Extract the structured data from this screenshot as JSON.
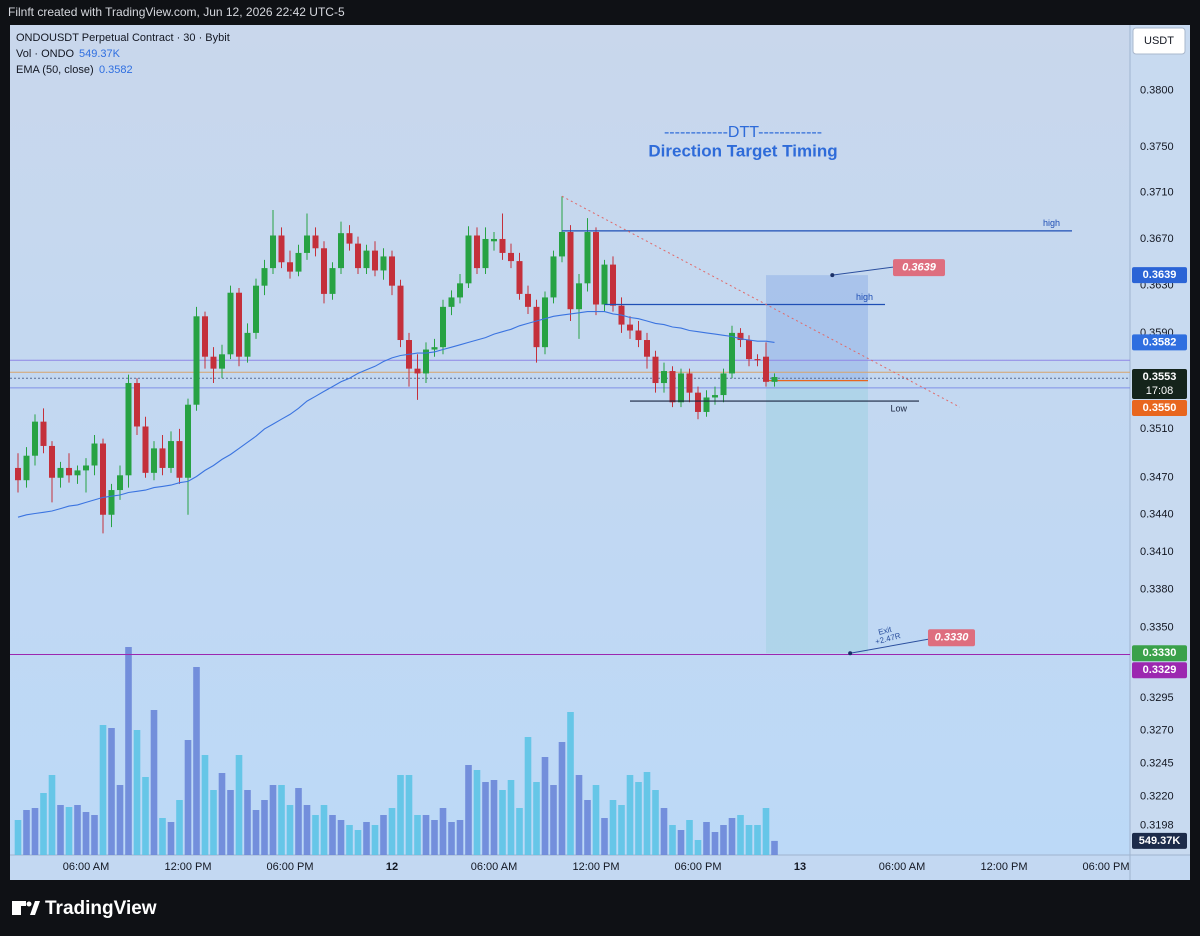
{
  "header": "Filnft created with TradingView.com, Jun 12, 2026 22:42 UTC-5",
  "brand": "TradingView",
  "chart_data": {
    "type": "candlestick",
    "title": "ONDOUSDT Perpetual Contract · 30 · Bybit",
    "currency": "USDT",
    "annotations": [
      "------------DTT------------",
      "Direction Target Timing"
    ],
    "annotation_color": "#2e6bd9",
    "up_color": "#27a243",
    "down_color": "#c4303b",
    "log": true,
    "grid": false,
    "ylim": [
      0.3176,
      0.3859
    ],
    "yticks": [
      {
        "value": 0.38,
        "label": "0.3800"
      },
      {
        "value": 0.375,
        "label": "0.3750"
      },
      {
        "value": 0.371,
        "label": "0.3710"
      },
      {
        "value": 0.367,
        "label": "0.3670"
      },
      {
        "value": 0.363,
        "label": "0.3630"
      },
      {
        "value": 0.359,
        "label": "0.3590"
      },
      {
        "value": 0.351,
        "label": "0.3510"
      },
      {
        "value": 0.347,
        "label": "0.3470"
      },
      {
        "value": 0.344,
        "label": "0.3440"
      },
      {
        "value": 0.341,
        "label": "0.3410"
      },
      {
        "value": 0.338,
        "label": "0.3380"
      },
      {
        "value": 0.335,
        "label": "0.3350"
      },
      0.3295,
      {
        "value": 0.327,
        "label": "0.3270"
      },
      0.3245,
      {
        "value": 0.322,
        "label": "0.3220"
      },
      0.3198
    ],
    "y2lim": [
      0,
      32370
    ],
    "categories": [
      null,
      null,
      null,
      null,
      null,
      null,
      null,
      null,
      "06:00 AM",
      null,
      null,
      null,
      null,
      null,
      null,
      null,
      null,
      null,
      null,
      null,
      "12:00 PM",
      null,
      null,
      null,
      null,
      null,
      null,
      null,
      null,
      null,
      null,
      null,
      "06:00 PM",
      null,
      null,
      null,
      null,
      null,
      null,
      null,
      null,
      null,
      null,
      null,
      "12",
      null,
      null,
      null,
      null,
      null,
      null,
      null,
      null,
      null,
      null,
      null,
      "06:00 AM",
      null,
      null,
      null,
      null,
      null,
      null,
      null,
      null,
      null,
      null,
      null,
      "12:00 PM",
      null,
      null,
      null,
      null,
      null,
      null,
      null,
      null,
      null,
      null,
      null,
      "06:00 PM",
      null,
      null,
      null,
      null,
      null,
      null,
      null,
      null,
      null,
      null,
      null,
      "13",
      null,
      null,
      null,
      null,
      null,
      null,
      null,
      null,
      null,
      null,
      null,
      "06:00 AM",
      null,
      null,
      null,
      null,
      null,
      null,
      null,
      null,
      null,
      null,
      null,
      "12:00 PM",
      null,
      null,
      null,
      null,
      null,
      null,
      null,
      null,
      null,
      null,
      null,
      "06:00 PM",
      null,
      null
    ],
    "open": [
      0.3478,
      0.3468,
      0.3488,
      0.3516,
      0.3496,
      0.347,
      0.3478,
      0.3472,
      0.3476,
      0.348,
      0.3498,
      0.344,
      0.346,
      0.3472,
      0.3548,
      0.3512,
      0.3474,
      0.3494,
      0.3478,
      0.35,
      0.347,
      0.353,
      0.3604,
      0.357,
      0.356,
      0.3572,
      0.3624,
      0.357,
      0.359,
      0.363,
      0.3645,
      0.3673,
      0.365,
      0.3642,
      0.3658,
      0.3673,
      0.3662,
      0.3623,
      0.3645,
      0.3675,
      0.3666,
      0.3645,
      0.366,
      0.3643,
      0.3655,
      0.363,
      0.3584,
      0.356,
      0.3556,
      0.3576,
      0.3578,
      0.3612,
      0.362,
      0.3632,
      0.3673,
      0.3645,
      0.3668,
      0.367,
      0.3658,
      0.3651,
      0.3623,
      0.3612,
      0.3578,
      0.362,
      0.3655,
      0.3676,
      0.361,
      0.3632,
      0.3676,
      0.3614,
      0.3648,
      0.3613,
      0.3597,
      0.3592,
      0.3584,
      0.357,
      0.3548,
      0.3558,
      0.3532,
      0.3556,
      0.354,
      0.3524,
      0.3536,
      0.3538,
      0.3556,
      0.359,
      0.3584,
      0.3568,
      0.357,
      0.3549,
      null,
      null,
      null,
      null,
      null,
      null,
      null,
      null,
      null,
      null,
      null,
      null,
      null,
      null,
      null,
      null,
      null,
      null,
      null,
      null,
      null,
      null,
      null,
      null,
      null,
      null,
      null,
      null,
      null,
      null,
      null,
      null,
      null,
      null,
      null,
      null,
      null,
      null,
      null,
      null,
      null
    ],
    "high": [
      0.349,
      0.3495,
      0.3522,
      0.3527,
      0.35,
      0.3483,
      0.349,
      0.348,
      0.3486,
      0.3505,
      0.3502,
      0.3465,
      0.348,
      0.3555,
      0.3552,
      0.352,
      0.35,
      0.3505,
      0.3508,
      0.351,
      0.3535,
      0.3612,
      0.3608,
      0.3578,
      0.358,
      0.363,
      0.3628,
      0.3598,
      0.3636,
      0.3652,
      0.3695,
      0.368,
      0.366,
      0.3665,
      0.3692,
      0.368,
      0.3668,
      0.365,
      0.3685,
      0.3682,
      0.3672,
      0.3665,
      0.3668,
      0.3662,
      0.366,
      0.3635,
      0.359,
      0.3572,
      0.3582,
      0.3585,
      0.3618,
      0.3626,
      0.364,
      0.3681,
      0.368,
      0.368,
      0.3676,
      0.3692,
      0.3666,
      0.3658,
      0.363,
      0.3618,
      0.3625,
      0.366,
      0.3707,
      0.3682,
      0.364,
      0.3688,
      0.368,
      0.3652,
      0.3655,
      0.362,
      0.3604,
      0.36,
      0.359,
      0.3575,
      0.3565,
      0.3562,
      0.356,
      0.356,
      0.3545,
      0.3542,
      0.3545,
      0.356,
      0.3596,
      0.3594,
      0.3588,
      0.3572,
      0.3582,
      0.3556,
      null,
      null,
      null,
      null,
      null,
      null,
      null,
      null,
      null,
      null,
      null,
      null,
      null,
      null,
      null,
      null,
      null,
      null,
      null,
      null,
      null,
      null,
      null,
      null,
      null,
      null,
      null,
      null,
      null,
      null,
      null,
      null,
      null,
      null,
      null,
      null,
      null,
      null,
      null,
      null,
      null
    ],
    "low": [
      0.3458,
      0.3462,
      0.348,
      0.349,
      0.345,
      0.3462,
      0.3466,
      0.3465,
      0.3458,
      0.3472,
      0.3425,
      0.343,
      0.3452,
      0.3462,
      0.3505,
      0.347,
      0.3468,
      0.3472,
      0.3474,
      0.3465,
      0.344,
      0.3525,
      0.356,
      0.3548,
      0.3552,
      0.3568,
      0.3562,
      0.3565,
      0.3585,
      0.3622,
      0.364,
      0.3645,
      0.3636,
      0.3638,
      0.3652,
      0.3655,
      0.3615,
      0.3618,
      0.364,
      0.366,
      0.364,
      0.364,
      0.3638,
      0.3635,
      0.3622,
      0.3578,
      0.3545,
      0.3534,
      0.3548,
      0.357,
      0.3572,
      0.3605,
      0.3615,
      0.3628,
      0.364,
      0.364,
      0.366,
      0.3652,
      0.3645,
      0.3618,
      0.3606,
      0.3565,
      0.3572,
      0.3615,
      0.365,
      0.36,
      0.3585,
      0.3625,
      0.3605,
      0.3608,
      0.3608,
      0.359,
      0.3585,
      0.3578,
      0.356,
      0.354,
      0.354,
      0.3528,
      0.3528,
      0.3532,
      0.3518,
      0.352,
      0.353,
      0.3532,
      0.3552,
      0.3578,
      0.3562,
      0.3562,
      0.3545,
      0.3545,
      null,
      null,
      null,
      null,
      null,
      null,
      null,
      null,
      null,
      null,
      null,
      null,
      null,
      null,
      null,
      null,
      null,
      null,
      null,
      null,
      null,
      null,
      null,
      null,
      null,
      null,
      null,
      null,
      null,
      null,
      null,
      null,
      null,
      null,
      null,
      null,
      null,
      null,
      null,
      null,
      null
    ],
    "close": [
      0.3468,
      0.3488,
      0.3516,
      0.3496,
      0.347,
      0.3478,
      0.3472,
      0.3476,
      0.348,
      0.3498,
      0.344,
      0.346,
      0.3472,
      0.3548,
      0.3512,
      0.3474,
      0.3494,
      0.3478,
      0.35,
      0.347,
      0.353,
      0.3604,
      0.357,
      0.356,
      0.3572,
      0.3624,
      0.357,
      0.359,
      0.363,
      0.3645,
      0.3673,
      0.365,
      0.3642,
      0.3658,
      0.3673,
      0.3662,
      0.3623,
      0.3645,
      0.3675,
      0.3666,
      0.3645,
      0.366,
      0.3643,
      0.3655,
      0.363,
      0.3584,
      0.356,
      0.3556,
      0.3576,
      0.3578,
      0.3612,
      0.362,
      0.3632,
      0.3673,
      0.3645,
      0.367,
      0.367,
      0.3658,
      0.3651,
      0.3623,
      0.3612,
      0.3578,
      0.362,
      0.3655,
      0.3676,
      0.361,
      0.3632,
      0.3676,
      0.3614,
      0.3648,
      0.3613,
      0.3597,
      0.3592,
      0.3584,
      0.357,
      0.3548,
      0.3558,
      0.3532,
      0.3556,
      0.354,
      0.3524,
      0.3536,
      0.3538,
      0.3556,
      0.359,
      0.3584,
      0.3568,
      0.3567,
      0.3549,
      0.3553,
      null,
      null,
      null,
      null,
      null,
      null,
      null,
      null,
      null,
      null,
      null,
      null,
      null,
      null,
      null,
      null,
      null,
      null,
      null,
      null,
      null,
      null,
      null,
      null,
      null,
      null,
      null,
      null,
      null,
      null,
      null,
      null,
      null,
      null,
      null,
      null,
      null,
      null,
      null,
      null,
      null
    ],
    "series": [
      {
        "name": "EMA (50, close)",
        "color": "#3b74e0",
        "legend_value": 0.3582,
        "values": [
          0.3438,
          0.344,
          0.3441,
          0.3442,
          0.3443,
          0.3445,
          0.3447,
          0.3448,
          0.345,
          0.3452,
          0.3454,
          0.3455,
          0.3456,
          0.3458,
          0.3459,
          0.346,
          0.3462,
          0.3463,
          0.3464,
          0.3466,
          0.3467,
          0.3471,
          0.3476,
          0.348,
          0.3485,
          0.3489,
          0.3494,
          0.3499,
          0.3504,
          0.351,
          0.3514,
          0.3518,
          0.3522,
          0.3527,
          0.3533,
          0.3537,
          0.3541,
          0.3545,
          0.3549,
          0.3552,
          0.3556,
          0.3559,
          0.3562,
          0.3566,
          0.3569,
          0.3571,
          0.3572,
          0.3573,
          0.3573,
          0.3574,
          0.3576,
          0.3578,
          0.358,
          0.3582,
          0.3584,
          0.3586,
          0.3589,
          0.3591,
          0.3593,
          0.3596,
          0.3598,
          0.36,
          0.3602,
          0.3604,
          0.3605,
          0.3606,
          0.3607,
          0.3608,
          0.3608,
          0.3608,
          0.3606,
          0.3605,
          0.3603,
          0.3602,
          0.36,
          0.3598,
          0.3597,
          0.3595,
          0.3594,
          0.3592,
          0.3591,
          0.359,
          0.3589,
          0.3588,
          0.3587,
          0.3585,
          0.3584,
          0.3583,
          0.3583,
          0.3582,
          null,
          null,
          null,
          null,
          null,
          null,
          null,
          null,
          null,
          null,
          null,
          null,
          null,
          null,
          null,
          null,
          null,
          null,
          null,
          null,
          null,
          null,
          null,
          null,
          null,
          null,
          null,
          null,
          null,
          null,
          null,
          null,
          null,
          null,
          null,
          null,
          null,
          null,
          null,
          null,
          null
        ]
      },
      {
        "name": "Vol · ONDO",
        "axis": "y2",
        "color": "#6a86d8",
        "down_color": "#5cc3e6",
        "legend_value": {
          "value": 549.37,
          "label": "549.37K"
        },
        "values": [
          1365,
          1755,
          1833,
          2418,
          3120,
          1950,
          1872,
          1950,
          1677,
          1560,
          5070,
          4953,
          2730,
          8112,
          4875,
          3042,
          5655,
          1443,
          1287,
          2145,
          4485,
          7332,
          3900,
          2535,
          3198,
          2535,
          3900,
          2535,
          1755,
          2145,
          2730,
          2730,
          1950,
          2613,
          1950,
          1560,
          1950,
          1560,
          1365,
          1170,
          975,
          1287,
          1170,
          1560,
          1833,
          3120,
          3120,
          1560,
          1560,
          1365,
          1833,
          1287,
          1365,
          3510,
          3315,
          2847,
          2925,
          2535,
          2925,
          1833,
          4602,
          2847,
          3822,
          2730,
          4407,
          5577,
          3120,
          2145,
          2730,
          1443,
          2145,
          1950,
          3120,
          2847,
          3237,
          2535,
          1833,
          1170,
          975,
          1365,
          585,
          1287,
          897,
          1170,
          1443,
          1560,
          1170,
          1170,
          1833,
          549.37,
          null,
          null,
          null,
          null,
          null,
          null,
          null,
          null,
          null,
          null,
          null,
          null,
          null,
          null,
          null,
          null,
          null,
          null,
          null,
          null,
          null,
          null,
          null,
          null,
          null,
          null,
          null,
          null,
          null,
          null,
          null,
          null,
          null,
          null,
          null,
          null,
          null,
          null,
          null,
          null,
          null
        ]
      }
    ],
    "hlines": [
      {
        "value": 0.3567,
        "color": "#8f86e6"
      },
      {
        "value": 0.3557,
        "color": "#d8a46c"
      },
      {
        "value": 0.3552,
        "color": "#5a6d96",
        "dash": true
      },
      {
        "value": 0.3544,
        "color": "#8090e6"
      },
      {
        "value": 0.3329,
        "color": "#9c27b0"
      }
    ],
    "levels": [
      {
        "label": "high",
        "value": 0.3677,
        "color": "#1f4fb5"
      },
      {
        "label": "high",
        "value": 0.3614,
        "color": "#1f4fb5"
      },
      {
        "label": "Low",
        "value": 0.3533,
        "color": "#1a2540"
      }
    ],
    "trendline": {
      "values": [
        0.3707,
        0.3528
      ],
      "color": "#e06a6a"
    },
    "position": {
      "top": 0.3639,
      "entry": 0.355,
      "bottom": {
        "value": 0.333,
        "label": "0.3330"
      },
      "exit": "Exit",
      "result": "+2.47R",
      "upper_color": "#a3bfea",
      "lower_color": "#abd4e8",
      "entry_color": "#e8661e",
      "label_color": "#de6e7f"
    },
    "price_labels": [
      {
        "value": 0.3639,
        "color": "#2b64d6"
      },
      {
        "value": 0.3582,
        "color": "#2f6fe0"
      },
      {
        "value": 0.3553,
        "color": "#14241b",
        "countdown": "17:08"
      },
      {
        "value": 0.355,
        "label": "0.3550",
        "color": "#e8661e"
      },
      {
        "value": 0.333,
        "label": "0.3330",
        "color": "#3aa14a"
      },
      {
        "value": 0.3329,
        "color": "#9c27b0"
      },
      {
        "value": 549.37,
        "label": "549.37K",
        "color": "#1c2b4a",
        "axis": "y2"
      }
    ]
  }
}
